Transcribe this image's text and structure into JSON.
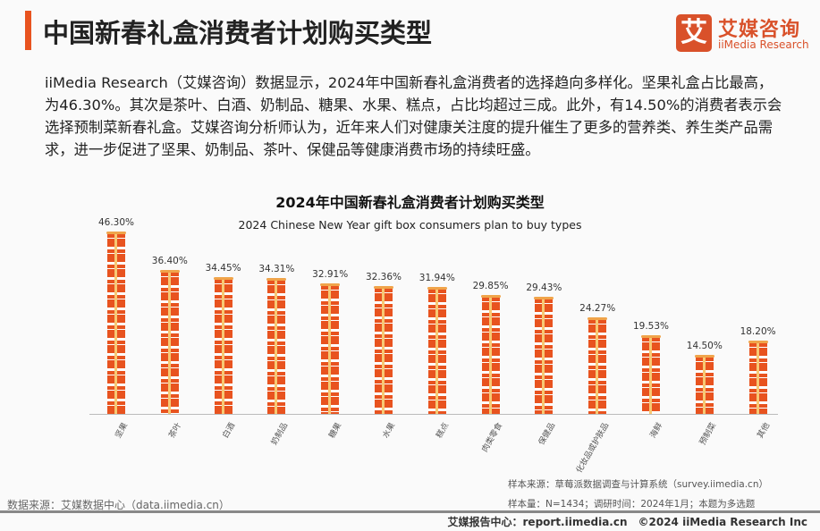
{
  "header": {
    "title": "中国新春礼盒消费者计划购买类型"
  },
  "logo": {
    "mark": "艾",
    "name_cn": "艾媒咨询",
    "name_en": "iiMedia Research"
  },
  "description": "iiMedia Research（艾媒咨询）数据显示，2024年中国新春礼盒消费者的选择趋向多样化。坚果礼盒占比最高，为46.30%。其次是茶叶、白酒、奶制品、糖果、水果、糕点，占比均超过三成。此外，有14.50%的消费者表示会选择预制菜新春礼盒。艾媒咨询分析师认为，近年来人们对健康关注度的提升催生了更多的营养类、养生类产品需求，进一步促进了坚果、奶制品、茶叶、保健品等健康消费市场的持续旺盛。",
  "chart_data": {
    "type": "bar",
    "title": "2024年中国新春礼盒消费者计划购买类型",
    "subtitle": "2024 Chinese New Year gift box consumers plan to buy types",
    "categories": [
      "坚果",
      "茶叶",
      "白酒",
      "奶制品",
      "糖果",
      "水果",
      "糕点",
      "肉类零食",
      "保健品",
      "化妆品或护肤品",
      "海鲜",
      "预制菜",
      "其他"
    ],
    "values": [
      46.3,
      36.4,
      34.45,
      34.31,
      32.91,
      32.36,
      31.94,
      29.85,
      29.43,
      24.27,
      19.53,
      14.5,
      18.2
    ],
    "labels": [
      "46.30%",
      "36.40%",
      "34.45%",
      "34.31%",
      "32.91%",
      "32.36%",
      "31.94%",
      "29.85%",
      "29.43%",
      "24.27%",
      "19.53%",
      "14.50%",
      "18.20%"
    ],
    "unit": "%",
    "ylim": [
      0,
      50
    ],
    "grid": false,
    "color": "#e8531f"
  },
  "notes": {
    "sample_source": "样本来源：草莓派数据调查与计算系统（survey.iimedia.cn）",
    "sample_info": "样本量：N=1434；调研时间：2024年1月；本题为多选题"
  },
  "source": "数据来源：艾媒数据中心（data.iimedia.cn）",
  "footer": "艾媒报告中心：report.iimedia.cn　©2024 iiMedia Research Inc"
}
